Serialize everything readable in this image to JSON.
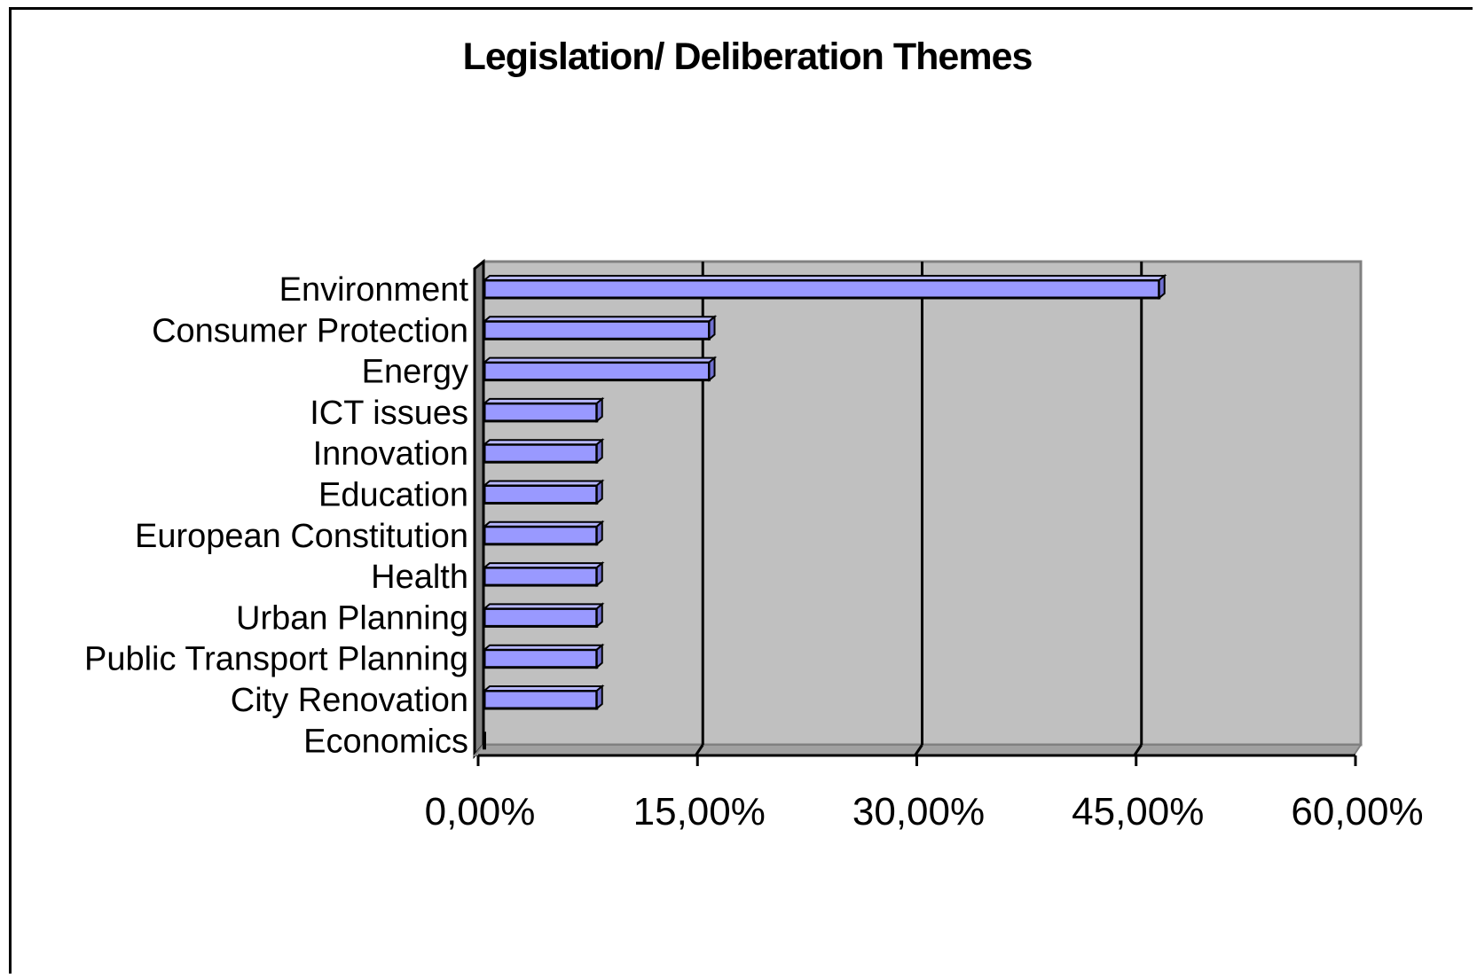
{
  "chart_data": {
    "type": "bar",
    "orientation": "horizontal",
    "title": "Legislation/ Deliberation Themes",
    "categories": [
      "Environment",
      "Consumer Protection",
      "Energy",
      "ICT issues",
      "Innovation",
      "Education",
      "European Constitution",
      "Health",
      "Urban Planning",
      "Public Transport Planning",
      "City Renovation",
      "Economics"
    ],
    "values": [
      46.15,
      15.38,
      15.38,
      7.69,
      7.69,
      7.69,
      7.69,
      7.69,
      7.69,
      7.69,
      7.69,
      0
    ],
    "xlim": [
      0,
      60
    ],
    "xticks": [
      0,
      15,
      30,
      45,
      60
    ],
    "xtick_labels": [
      "0,00%",
      "15,00%",
      "30,00%",
      "45,00%",
      "60,00%"
    ],
    "grid": "vertical",
    "colors": {
      "bar": "#9999ff",
      "bar_top": "#b8b8ff",
      "bar_side": "#7070d0",
      "plot_bg": "#c0c0c0",
      "wall_side": "#808080"
    }
  }
}
